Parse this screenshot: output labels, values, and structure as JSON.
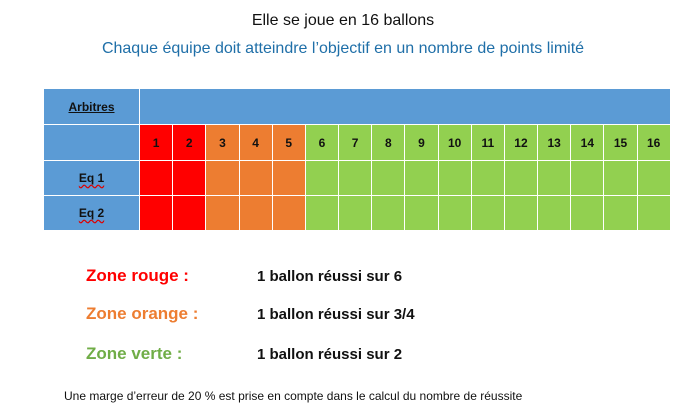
{
  "title": "Elle se joue en 16 ballons",
  "subtitle": "Chaque équipe doit atteindre l’objectif en un nombre de points limité",
  "table": {
    "header_label": "Arbitres",
    "numbers": [
      "1",
      "2",
      "3",
      "4",
      "5",
      "6",
      "7",
      "8",
      "9",
      "10",
      "11",
      "12",
      "13",
      "14",
      "15",
      "16"
    ],
    "rows": [
      {
        "label": "Eq 1"
      },
      {
        "label": "Eq 2"
      }
    ],
    "colors": {
      "header": "#5b9bd5",
      "red": "#ff0000",
      "orange": "#ed7d31",
      "green": "#92d050"
    }
  },
  "zones": [
    {
      "label": "Zone rouge :",
      "desc": "1 ballon réussi sur 6",
      "color": "#ff0000"
    },
    {
      "label": "Zone orange :",
      "desc": "1 ballon réussi sur 3/4",
      "color": "#ed7d31"
    },
    {
      "label": "Zone verte :",
      "desc": "1 ballon réussi sur 2",
      "color": "#70ad47"
    }
  ],
  "note": "Une marge d’erreur de 20 % est prise en compte dans le calcul du nombre de réussite"
}
